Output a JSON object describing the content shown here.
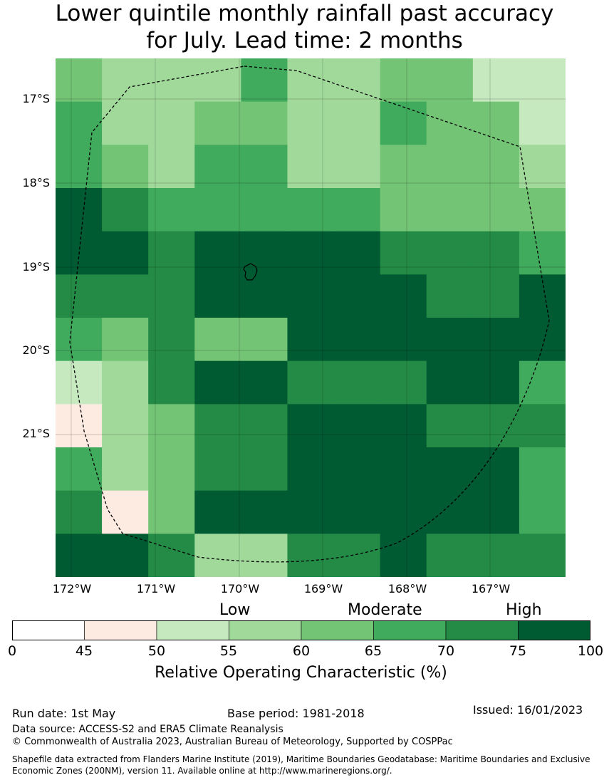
{
  "title_line1": "Lower quintile monthly rainfall past accuracy",
  "title_line2": "for July. Lead time: 2 months",
  "map": {
    "lat_labels": [
      "17°S",
      "18°S",
      "19°S",
      "20°S",
      "21°S"
    ],
    "lon_labels": [
      "172°W",
      "171°W",
      "170°W",
      "169°W",
      "168°W",
      "167°W"
    ],
    "grid_values": [
      [
        62.5,
        57.5,
        57.5,
        57.5,
        67.5,
        57.5,
        57.5,
        62.5,
        62.5,
        52.5,
        52.5
      ],
      [
        67.5,
        57.5,
        57.5,
        62.5,
        62.5,
        57.5,
        57.5,
        67.5,
        62.5,
        62.5,
        52.5
      ],
      [
        67.5,
        62.5,
        57.5,
        67.5,
        67.5,
        57.5,
        57.5,
        62.5,
        62.5,
        62.5,
        57.5
      ],
      [
        77.5,
        72.5,
        67.5,
        67.5,
        67.5,
        67.5,
        67.5,
        62.5,
        62.5,
        62.5,
        62.5
      ],
      [
        77.5,
        77.5,
        72.5,
        77.5,
        77.5,
        77.5,
        77.5,
        72.5,
        72.5,
        72.5,
        67.5
      ],
      [
        72.5,
        72.5,
        72.5,
        77.5,
        77.5,
        77.5,
        77.5,
        77.5,
        72.5,
        72.5,
        77.5
      ],
      [
        67.5,
        62.5,
        72.5,
        62.5,
        62.5,
        77.5,
        77.5,
        77.5,
        77.5,
        77.5,
        77.5
      ],
      [
        52.5,
        57.5,
        72.5,
        77.5,
        77.5,
        72.5,
        72.5,
        72.5,
        77.5,
        77.5,
        67.5
      ],
      [
        47.5,
        57.5,
        62.5,
        72.5,
        72.5,
        77.5,
        77.5,
        77.5,
        72.5,
        72.5,
        72.5
      ],
      [
        67.5,
        57.5,
        62.5,
        72.5,
        72.5,
        77.5,
        77.5,
        77.5,
        77.5,
        77.5,
        67.5
      ],
      [
        72.5,
        47.5,
        62.5,
        77.5,
        77.5,
        77.5,
        77.5,
        77.5,
        77.5,
        77.5,
        67.5
      ],
      [
        77.5,
        77.5,
        72.5,
        57.5,
        57.5,
        72.5,
        72.5,
        77.5,
        72.5,
        72.5,
        72.5
      ]
    ],
    "colors": {
      "0-45": "#ffffff",
      "45-50": "#fdeae1",
      "50-55": "#c7e9c0",
      "55-60": "#a1d99b",
      "60-65": "#74c476",
      "65-70": "#41ab5d",
      "70-75": "#238b45",
      "75-100": "#005a32"
    }
  },
  "colorbar": {
    "ticks": [
      "0",
      "45",
      "50",
      "55",
      "60",
      "65",
      "70",
      "75",
      "100"
    ],
    "categories": {
      "low": "Low",
      "moderate": "Moderate",
      "high": "High"
    },
    "title": "Relative Operating Characteristic (%)"
  },
  "footer": {
    "run_date": "Run date: 1st May",
    "base_period": "Base period: 1981-2018",
    "issued": "Issued: 16/01/2023",
    "data_source": "Data source: ACCESS-S2 and ERA5 Climate Reanalysis",
    "copyright": "© Commonwealth of Australia 2023, Australian Bureau of Meteorology, Supported by COSPPac",
    "shapefile": "Shapefile data extracted from Flanders Marine Institute (2019), Maritime Boundaries Geodatabase: Maritime Boundaries and Exclusive Economic Zones (200NM), version 11. Available online at http://www.marineregions.org/."
  }
}
